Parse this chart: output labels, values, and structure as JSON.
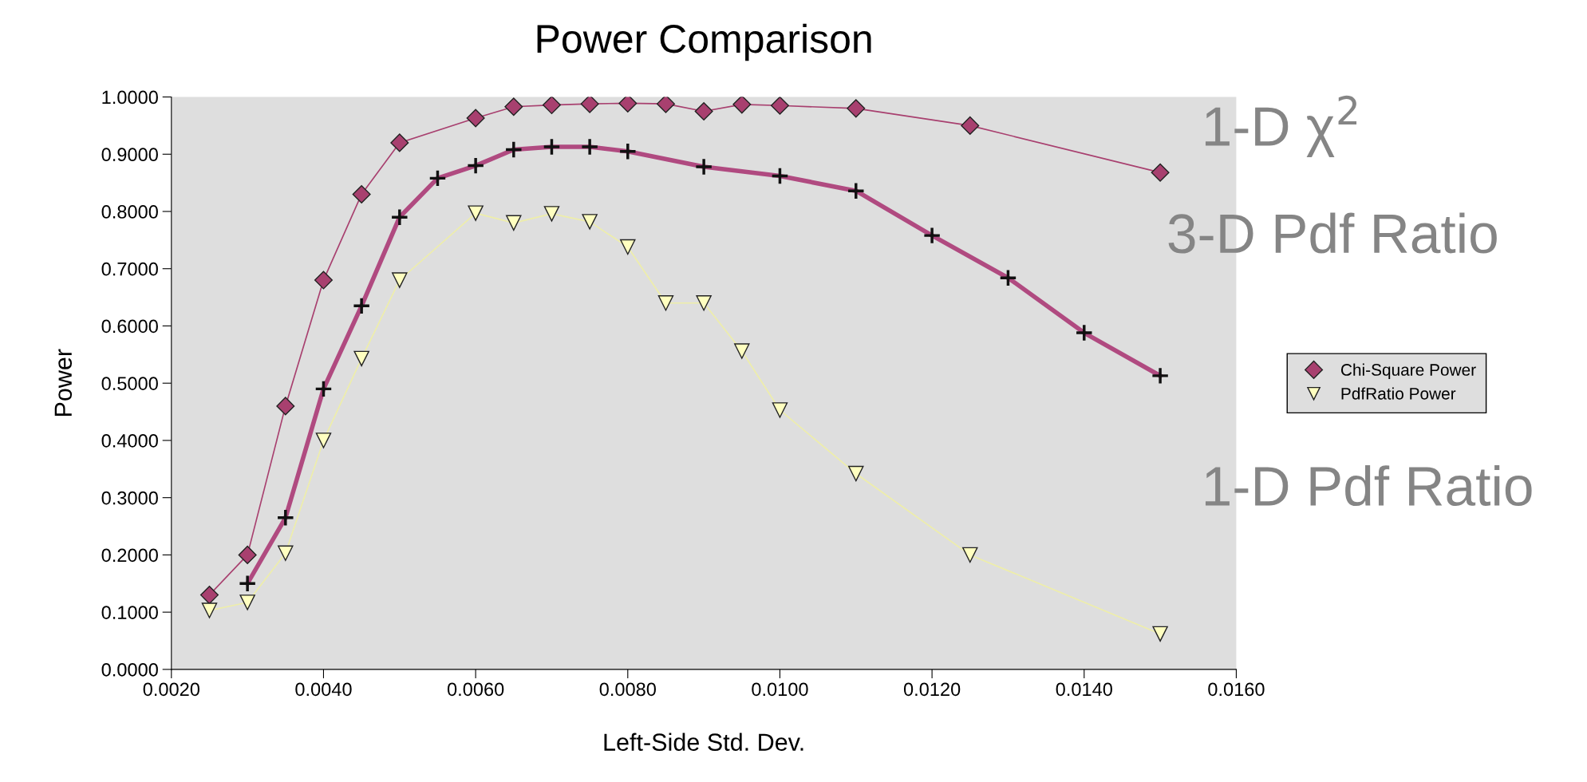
{
  "chart_data": {
    "type": "line",
    "title": "Power Comparison",
    "xlabel": "Left-Side Std. Dev.",
    "ylabel": "Power",
    "xlim": [
      0.002,
      0.016
    ],
    "xticks": [
      {
        "value": 0.002,
        "label": "0.0020"
      },
      {
        "value": 0.004,
        "label": "0.0040"
      },
      {
        "value": 0.006,
        "label": "0.0060"
      },
      {
        "value": 0.008,
        "label": "0.0080"
      },
      {
        "value": 0.01,
        "label": "0.0100"
      },
      {
        "value": 0.012,
        "label": "0.0120"
      },
      {
        "value": 0.014,
        "label": "0.0140"
      },
      {
        "value": 0.016,
        "label": "0.0160"
      }
    ],
    "ylim": [
      0,
      1
    ],
    "yticks": [
      {
        "value": 0,
        "label": "0.0000"
      },
      {
        "value": 0.1,
        "label": "0.1000"
      },
      {
        "value": 0.2,
        "label": "0.2000"
      },
      {
        "value": 0.3,
        "label": "0.3000"
      },
      {
        "value": 0.4,
        "label": "0.4000"
      },
      {
        "value": 0.5,
        "label": "0.5000"
      },
      {
        "value": 0.6,
        "label": "0.6000"
      },
      {
        "value": 0.7,
        "label": "0.7000"
      },
      {
        "value": 0.8,
        "label": "0.8000"
      },
      {
        "value": 0.9,
        "label": "0.9000"
      },
      {
        "value": 1,
        "label": "1.0000"
      }
    ],
    "grid": false,
    "legend": "right",
    "series": [
      {
        "name": "Chi-Square Power",
        "color": "#a8406f",
        "marker": "diamond",
        "x": [
          0.0025,
          0.003,
          0.0035,
          0.004,
          0.0045,
          0.005,
          0.006,
          0.0065,
          0.007,
          0.0075,
          0.008,
          0.0085,
          0.009,
          0.0095,
          0.01,
          0.011,
          0.0125,
          0.015
        ],
        "values": [
          0.13,
          0.2,
          0.46,
          0.68,
          0.83,
          0.92,
          0.963,
          0.983,
          0.986,
          0.988,
          0.989,
          0.988,
          0.975,
          0.987,
          0.985,
          0.98,
          0.95,
          0.868
        ]
      },
      {
        "color": "#b04a80",
        "marker": "cross",
        "x": [
          0.003,
          0.0035,
          0.004,
          0.0045,
          0.005,
          0.0055,
          0.006,
          0.0065,
          0.007,
          0.0075,
          0.008,
          0.009,
          0.01,
          0.011,
          0.012,
          0.013,
          0.014,
          0.015
        ],
        "values": [
          0.15,
          0.265,
          0.49,
          0.635,
          0.79,
          0.858,
          0.88,
          0.908,
          0.913,
          0.913,
          0.905,
          0.878,
          0.862,
          0.836,
          0.758,
          0.684,
          0.588,
          0.513
        ]
      },
      {
        "name": "PdfRatio Power",
        "color": "#ffffc0",
        "marker": "triangle",
        "x": [
          0.0025,
          0.003,
          0.0035,
          0.004,
          0.0045,
          0.005,
          0.006,
          0.0065,
          0.007,
          0.0075,
          0.008,
          0.0085,
          0.009,
          0.0095,
          0.01,
          0.011,
          0.0125,
          0.015
        ],
        "values": [
          0.103,
          0.117,
          0.203,
          0.4,
          0.543,
          0.68,
          0.797,
          0.78,
          0.796,
          0.782,
          0.738,
          0.64,
          0.64,
          0.556,
          0.453,
          0.342,
          0.2,
          0.062
        ]
      }
    ],
    "annotations": [
      "1-D χ$^{2}$",
      "3-D Pdf Ratio",
      "1-D Pdf Ratio"
    ]
  }
}
